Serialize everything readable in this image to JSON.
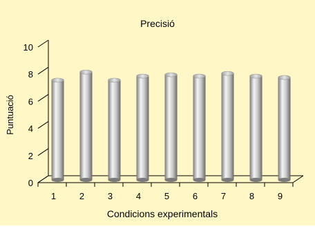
{
  "chart_data": {
    "type": "bar",
    "title": "Precisió",
    "xlabel": "Condicions experimentals",
    "ylabel": "Puntuació",
    "categories": [
      "1",
      "2",
      "3",
      "4",
      "5",
      "6",
      "7",
      "8",
      "9"
    ],
    "values": [
      7.3,
      7.9,
      7.3,
      7.6,
      7.7,
      7.6,
      7.8,
      7.6,
      7.5
    ],
    "ylim": [
      0,
      10
    ],
    "yticks": [
      0,
      2,
      4,
      6,
      8,
      10
    ],
    "grid": false,
    "legend": "none",
    "colors": {
      "background": "#FFF8C6",
      "bar_light": "#F2F2F2",
      "bar_mid": "#B8B8B8",
      "bar_dark": "#6E6E6E",
      "axis": "#000000"
    }
  }
}
